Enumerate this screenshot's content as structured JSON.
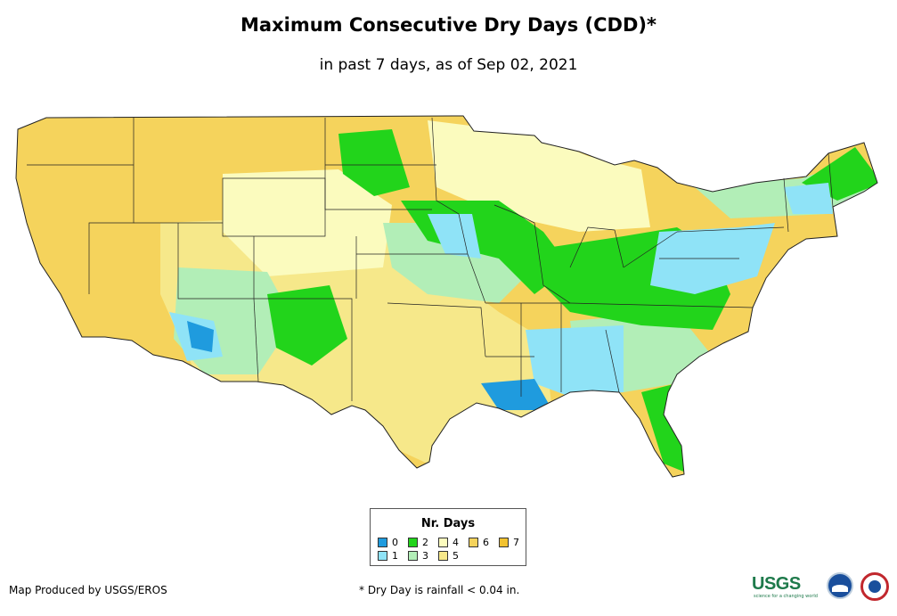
{
  "title": "Maximum Consecutive Dry Days (CDD)*",
  "subtitle": "in past 7 days, as of Sep 02, 2021",
  "legend": {
    "title": "Nr. Days",
    "items": [
      {
        "label": "0",
        "color": "#1f9bde"
      },
      {
        "label": "1",
        "color": "#8fe3f7"
      },
      {
        "label": "2",
        "color": "#22d41b"
      },
      {
        "label": "3",
        "color": "#b2eeb7"
      },
      {
        "label": "4",
        "color": "#fbfbbe"
      },
      {
        "label": "5",
        "color": "#f6e88a"
      },
      {
        "label": "6",
        "color": "#f5d35c"
      },
      {
        "label": "7",
        "color": "#f2c230"
      }
    ]
  },
  "credit": "Map Produced by USGS/EROS",
  "footnote": "* Dry Day is rainfall < 0.04 in.",
  "logos": {
    "usgs": "USGS",
    "usgs_tagline": "science for a changing world"
  }
}
